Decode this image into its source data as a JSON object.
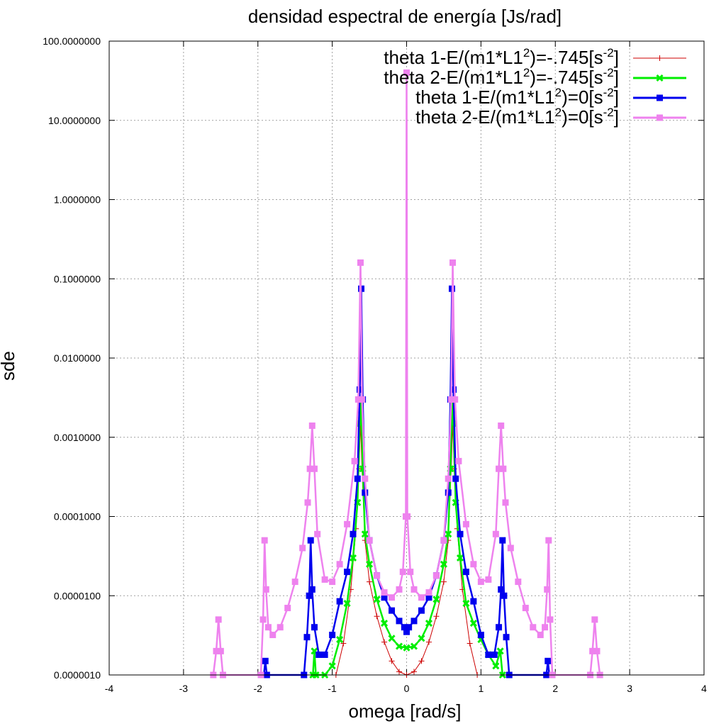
{
  "chart_data": {
    "type": "line",
    "title": "densidad espectral de energía [Js/rad]",
    "xlabel": "omega [rad/s]",
    "ylabel": "sde",
    "xlim": [
      -4,
      4
    ],
    "ylim": [
      1e-06,
      100
    ],
    "yscale": "log",
    "grid": true,
    "legend_position": "top-right",
    "x_ticks": [
      "-4",
      "-3",
      "-2",
      "-1",
      "0",
      "1",
      "2",
      "3",
      "4"
    ],
    "y_ticks": [
      "0.0000010",
      "0.0000100",
      "0.0001000",
      "0.0010000",
      "0.0100000",
      "0.1000000",
      "1.0000000",
      "10.0000000",
      "100.0000000"
    ],
    "series": [
      {
        "name": "theta 1-E/(m1*L1 2)=-.745[s -2]",
        "legend_parts": [
          "theta 1-E/(m1*L1",
          "2",
          ")=-.745[s",
          "-2",
          "]"
        ],
        "color": "#cc0000",
        "marker": "plus",
        "points": [
          [
            -0.95,
            1e-06
          ],
          [
            -0.85,
            2.5e-06
          ],
          [
            -0.75,
            1.2e-05
          ],
          [
            -0.68,
            7e-05
          ],
          [
            -0.64,
            0.0004
          ],
          [
            -0.62,
            0.0015
          ],
          [
            -0.6,
            0.0004
          ],
          [
            -0.56,
            5e-05
          ],
          [
            -0.5,
            1.5e-05
          ],
          [
            -0.4,
            5.5e-06
          ],
          [
            -0.3,
            2.6e-06
          ],
          [
            -0.2,
            1.5e-06
          ],
          [
            -0.1,
            1.1e-06
          ],
          [
            0,
            1e-06
          ],
          [
            0.1,
            1.1e-06
          ],
          [
            0.2,
            1.5e-06
          ],
          [
            0.3,
            2.6e-06
          ],
          [
            0.4,
            5.5e-06
          ],
          [
            0.5,
            1.5e-05
          ],
          [
            0.56,
            5e-05
          ],
          [
            0.6,
            0.0004
          ],
          [
            0.62,
            0.0015
          ],
          [
            0.64,
            0.0004
          ],
          [
            0.68,
            7e-05
          ],
          [
            0.75,
            1.2e-05
          ],
          [
            0.85,
            2.5e-06
          ],
          [
            0.95,
            1e-06
          ]
        ]
      },
      {
        "name": "theta 2-E/(m1*L1 2)=-.745[s -2]",
        "legend_parts": [
          "theta 2-E/(m1*L1",
          "2",
          ")=-.745[s",
          "-2",
          "]"
        ],
        "color": "#00ee00",
        "marker": "x",
        "points": [
          [
            -1.26,
            1e-06
          ],
          [
            -1.24,
            2e-06
          ],
          [
            -1.22,
            1e-06
          ],
          [
            -1.1,
            1e-06
          ],
          [
            -1.0,
            1.3e-06
          ],
          [
            -0.9,
            2.8e-06
          ],
          [
            -0.8,
            8e-06
          ],
          [
            -0.72,
            3e-05
          ],
          [
            -0.66,
            0.00015
          ],
          [
            -0.63,
            0.0015
          ],
          [
            -0.61,
            0.003
          ],
          [
            -0.59,
            0.0004
          ],
          [
            -0.56,
            6e-05
          ],
          [
            -0.5,
            2.5e-05
          ],
          [
            -0.4,
            9e-06
          ],
          [
            -0.3,
            4.5e-06
          ],
          [
            -0.2,
            2.9e-06
          ],
          [
            -0.1,
            2.3e-06
          ],
          [
            0,
            2.2e-06
          ],
          [
            0.1,
            2.3e-06
          ],
          [
            0.2,
            2.9e-06
          ],
          [
            0.3,
            4.5e-06
          ],
          [
            0.4,
            9e-06
          ],
          [
            0.5,
            2.5e-05
          ],
          [
            0.56,
            6e-05
          ],
          [
            0.59,
            0.0004
          ],
          [
            0.61,
            0.003
          ],
          [
            0.63,
            0.0015
          ],
          [
            0.66,
            0.00015
          ],
          [
            0.72,
            3e-05
          ],
          [
            0.8,
            8e-06
          ],
          [
            0.9,
            4.5e-06
          ],
          [
            1.0,
            2.8e-06
          ],
          [
            1.1,
            1.8e-06
          ],
          [
            1.2,
            1.3e-06
          ],
          [
            1.26,
            2e-06
          ],
          [
            1.29,
            1e-06
          ]
        ]
      },
      {
        "name": "theta 1-E/(m1*L1 2)=0[s -2]",
        "legend_parts": [
          "theta 1-E/(m1*L1",
          "2",
          ")=0[s",
          "-2",
          "]"
        ],
        "color": "#0000ee",
        "marker": "square",
        "points": [
          [
            -1.92,
            1e-06
          ],
          [
            -1.9,
            1.5e-06
          ],
          [
            -1.88,
            1e-06
          ],
          [
            -1.38,
            1e-06
          ],
          [
            -1.34,
            3e-06
          ],
          [
            -1.31,
            1e-05
          ],
          [
            -1.29,
            5e-05
          ],
          [
            -1.27,
            1.2e-05
          ],
          [
            -1.24,
            4e-06
          ],
          [
            -1.18,
            1.8e-06
          ],
          [
            -1.1,
            1.8e-06
          ],
          [
            -1.0,
            3.2e-06
          ],
          [
            -0.9,
            8.5e-06
          ],
          [
            -0.8,
            2e-05
          ],
          [
            -0.72,
            6e-05
          ],
          [
            -0.66,
            0.0003
          ],
          [
            -0.63,
            0.004
          ],
          [
            -0.61,
            0.075
          ],
          [
            -0.59,
            0.003
          ],
          [
            -0.56,
            0.0002
          ],
          [
            -0.5,
            5e-05
          ],
          [
            -0.4,
            1.8e-05
          ],
          [
            -0.3,
            9.5e-06
          ],
          [
            -0.2,
            6.5e-06
          ],
          [
            -0.1,
            4.8e-06
          ],
          [
            -0.03,
            4e-06
          ],
          [
            0,
            3.5e-06
          ],
          [
            0.03,
            4e-06
          ],
          [
            0.1,
            4.8e-06
          ],
          [
            0.2,
            6.5e-06
          ],
          [
            0.3,
            9.5e-06
          ],
          [
            0.4,
            1.8e-05
          ],
          [
            0.5,
            5e-05
          ],
          [
            0.56,
            0.0002
          ],
          [
            0.59,
            0.003
          ],
          [
            0.61,
            0.075
          ],
          [
            0.63,
            0.004
          ],
          [
            0.66,
            0.0003
          ],
          [
            0.72,
            6e-05
          ],
          [
            0.8,
            2e-05
          ],
          [
            0.9,
            8.5e-06
          ],
          [
            1.0,
            3.2e-06
          ],
          [
            1.1,
            1.8e-06
          ],
          [
            1.18,
            1.8e-06
          ],
          [
            1.24,
            4e-06
          ],
          [
            1.27,
            1.2e-05
          ],
          [
            1.29,
            5e-05
          ],
          [
            1.31,
            1e-05
          ],
          [
            1.34,
            3e-06
          ],
          [
            1.38,
            1e-06
          ],
          [
            1.88,
            1e-06
          ],
          [
            1.9,
            1.5e-06
          ],
          [
            1.92,
            1e-06
          ]
        ]
      },
      {
        "name": "theta 2-E/(m1*L1 2)=0[s -2]",
        "legend_parts": [
          "theta 2-E/(m1*L1",
          "2",
          ")=0[s",
          "-2",
          "]"
        ],
        "color": "#ee82ee",
        "marker": "square",
        "points": [
          [
            -2.6,
            1e-06
          ],
          [
            -2.56,
            2e-06
          ],
          [
            -2.53,
            5e-06
          ],
          [
            -2.5,
            2e-06
          ],
          [
            -2.47,
            1e-06
          ],
          [
            -1.96,
            1e-06
          ],
          [
            -1.93,
            5e-06
          ],
          [
            -1.91,
            5e-05
          ],
          [
            -1.89,
            1.2e-05
          ],
          [
            -1.86,
            4e-06
          ],
          [
            -1.8,
            3.2e-06
          ],
          [
            -1.7,
            4e-06
          ],
          [
            -1.6,
            7e-06
          ],
          [
            -1.5,
            1.5e-05
          ],
          [
            -1.4,
            4e-05
          ],
          [
            -1.33,
            0.00015
          ],
          [
            -1.3,
            0.0004
          ],
          [
            -1.27,
            0.0014
          ],
          [
            -1.24,
            0.0004
          ],
          [
            -1.2,
            6e-05
          ],
          [
            -1.1,
            1.6e-05
          ],
          [
            -1.0,
            1.5e-05
          ],
          [
            -0.9,
            2.5e-05
          ],
          [
            -0.8,
            8e-05
          ],
          [
            -0.7,
            0.0005
          ],
          [
            -0.65,
            0.003
          ],
          [
            -0.62,
            0.16
          ],
          [
            -0.6,
            0.003
          ],
          [
            -0.56,
            0.0003
          ],
          [
            -0.5,
            5e-05
          ],
          [
            -0.4,
            1.8e-05
          ],
          [
            -0.3,
            1.1e-05
          ],
          [
            -0.2,
            9.5e-06
          ],
          [
            -0.1,
            1.2e-05
          ],
          [
            -0.05,
            2e-05
          ],
          [
            -0.01,
            0.0001
          ],
          [
            0,
            40
          ],
          [
            0.01,
            0.0001
          ],
          [
            0.05,
            2e-05
          ],
          [
            0.1,
            1.2e-05
          ],
          [
            0.2,
            9.5e-06
          ],
          [
            0.3,
            1.1e-05
          ],
          [
            0.4,
            1.8e-05
          ],
          [
            0.5,
            5e-05
          ],
          [
            0.56,
            0.0003
          ],
          [
            0.6,
            0.003
          ],
          [
            0.62,
            0.16
          ],
          [
            0.65,
            0.003
          ],
          [
            0.7,
            0.0005
          ],
          [
            0.8,
            8e-05
          ],
          [
            0.9,
            2.5e-05
          ],
          [
            1.0,
            1.5e-05
          ],
          [
            1.1,
            1.6e-05
          ],
          [
            1.2,
            6e-05
          ],
          [
            1.24,
            0.0004
          ],
          [
            1.27,
            0.0014
          ],
          [
            1.3,
            0.0004
          ],
          [
            1.33,
            0.00015
          ],
          [
            1.4,
            4e-05
          ],
          [
            1.5,
            1.5e-05
          ],
          [
            1.6,
            7e-06
          ],
          [
            1.7,
            4e-06
          ],
          [
            1.8,
            3.2e-06
          ],
          [
            1.86,
            4e-06
          ],
          [
            1.89,
            1.2e-05
          ],
          [
            1.91,
            5e-05
          ],
          [
            1.93,
            5e-06
          ],
          [
            1.96,
            1e-06
          ],
          [
            2.47,
            1e-06
          ],
          [
            2.5,
            2e-06
          ],
          [
            2.53,
            5e-06
          ],
          [
            2.56,
            2e-06
          ],
          [
            2.6,
            1e-06
          ]
        ]
      }
    ]
  }
}
